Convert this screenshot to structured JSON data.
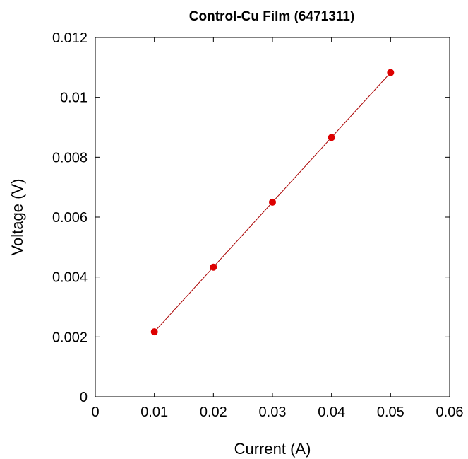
{
  "chart_data": {
    "type": "scatter",
    "title": "Control-Cu Film (6471311)",
    "xlabel": "Current (A)",
    "ylabel": "Voltage (V)",
    "xlim": [
      0,
      0.06
    ],
    "ylim": [
      0,
      0.012
    ],
    "x_ticks": [
      0,
      0.01,
      0.02,
      0.03,
      0.04,
      0.05,
      0.06
    ],
    "x_tick_labels": [
      "0",
      "0.01",
      "0.02",
      "0.03",
      "0.04",
      "0.05",
      "0.06"
    ],
    "y_ticks": [
      0,
      0.002,
      0.004,
      0.006,
      0.008,
      0.01,
      0.012
    ],
    "y_tick_labels": [
      "0",
      "0.002",
      "0.004",
      "0.006",
      "0.008",
      "0.01",
      "0.012"
    ],
    "grid": false,
    "legend": "none",
    "series": [
      {
        "x": [
          0.01,
          0.02,
          0.03,
          0.04,
          0.05
        ],
        "y": [
          0.00217,
          0.00433,
          0.0065,
          0.00866,
          0.01083
        ],
        "marker_color": "#dd0000",
        "line_color": "#aa0000",
        "fit_line": true
      }
    ]
  }
}
